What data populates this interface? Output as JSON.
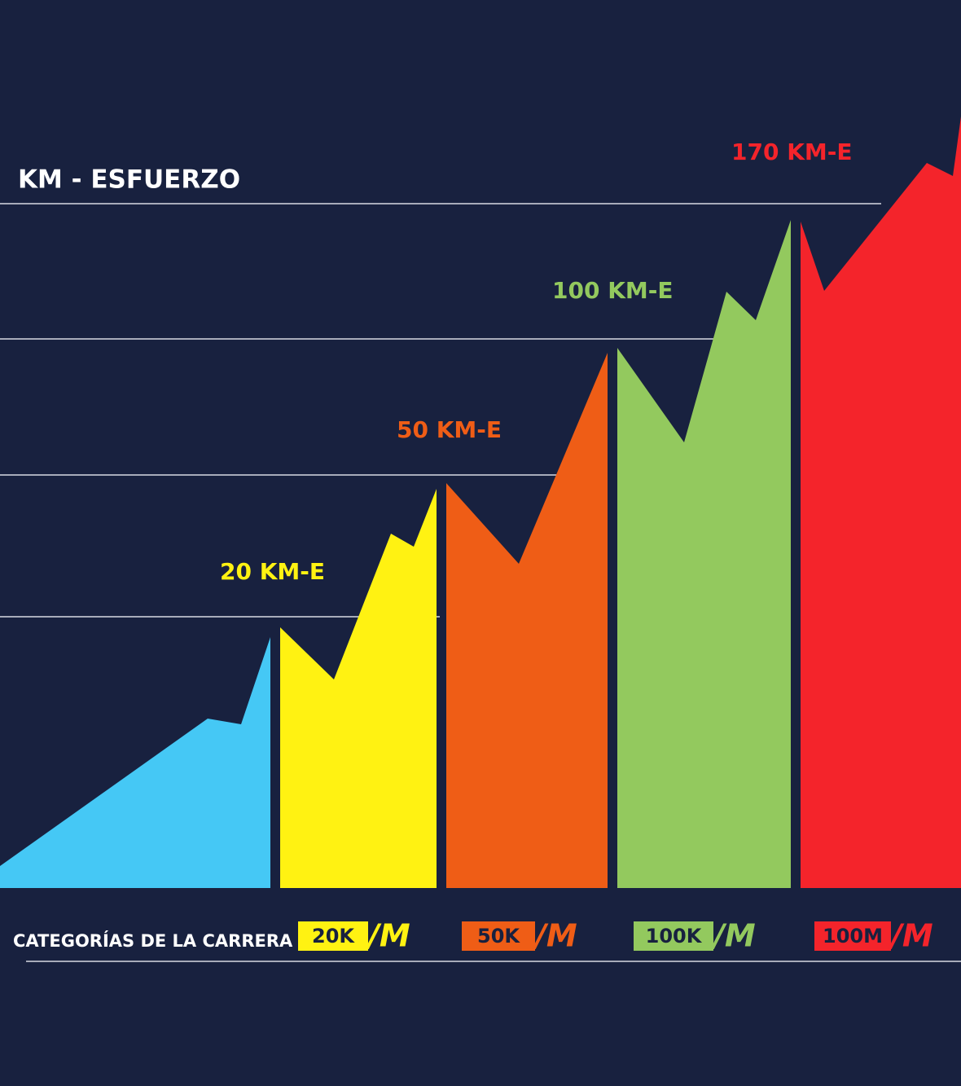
{
  "title": "KM - ESFUERZO",
  "levels": [
    {
      "label": "20 KM-E"
    },
    {
      "label": "50 KM-E"
    },
    {
      "label": "100 KM-E"
    },
    {
      "label": "170 KM-E"
    }
  ],
  "footer": {
    "label": "CATEGORÍAS DE LA CARRERA",
    "categories": [
      {
        "badge": "20K",
        "mark": "/M"
      },
      {
        "badge": "50K",
        "mark": "/M"
      },
      {
        "badge": "100K",
        "mark": "/M"
      },
      {
        "badge": "100M",
        "mark": "/M"
      }
    ]
  }
}
